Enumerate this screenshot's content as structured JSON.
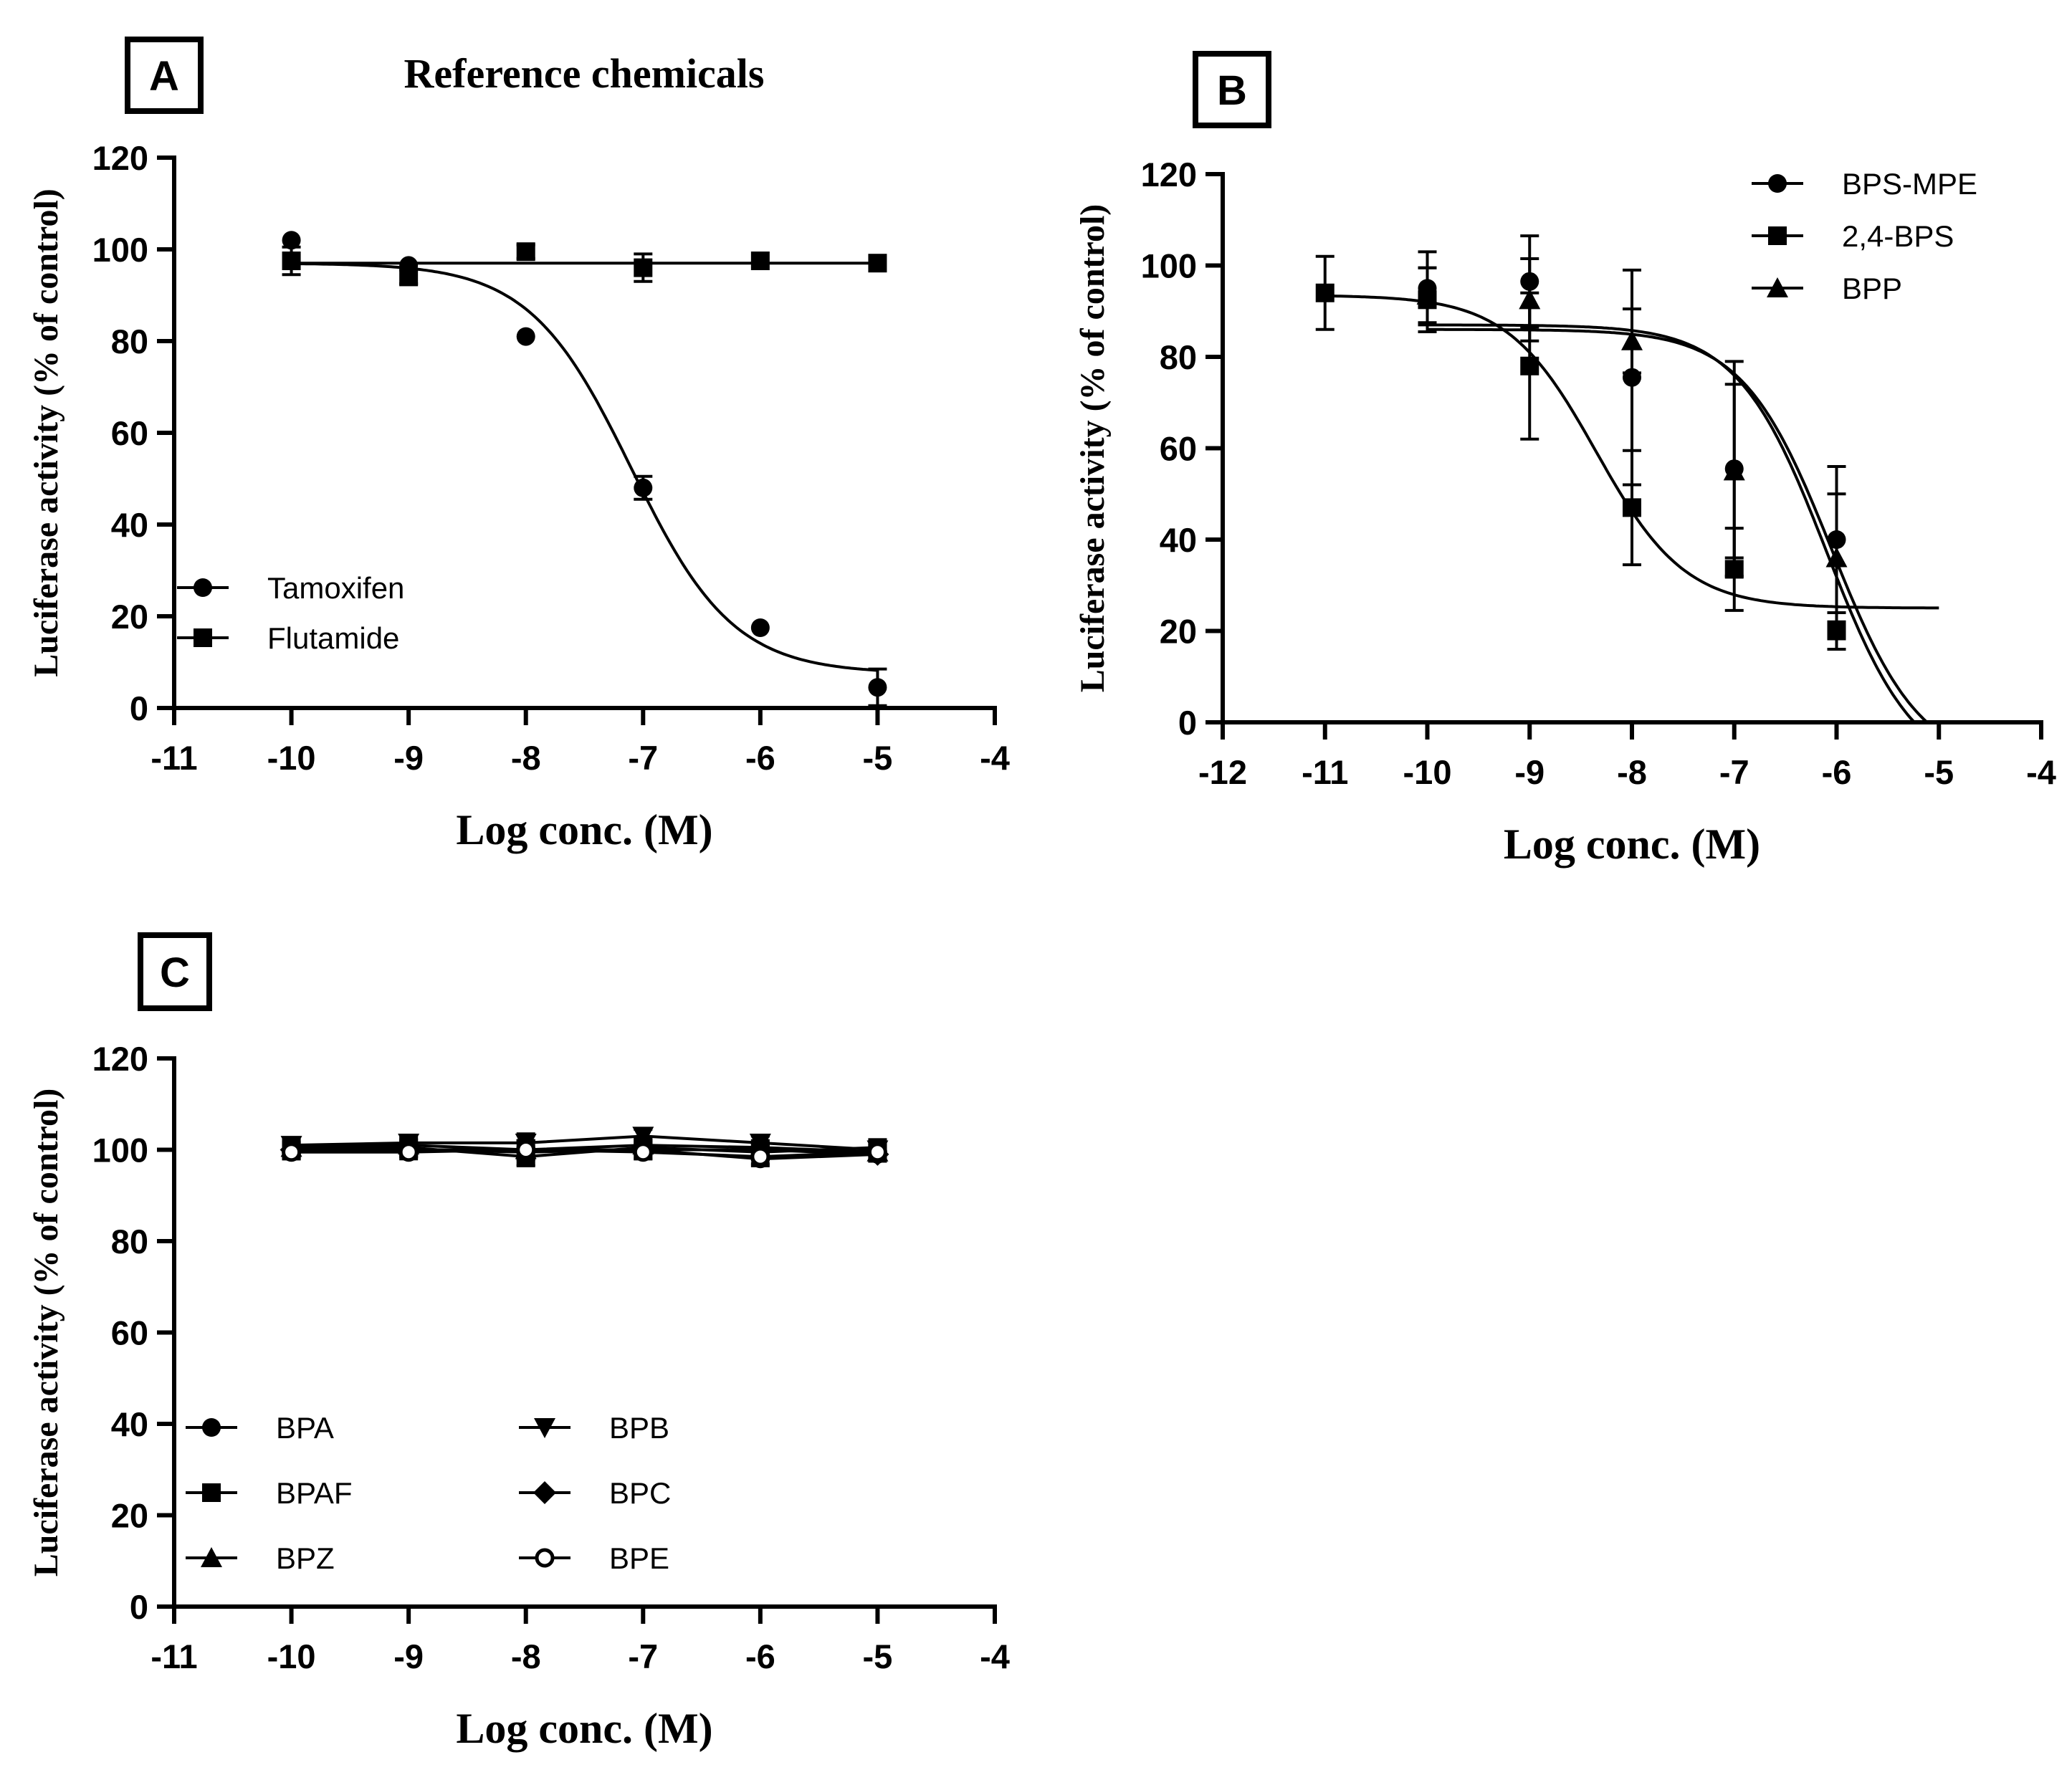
{
  "chart_data": [
    {
      "panel": "A",
      "type": "scatter",
      "title": "Reference chemicals",
      "xlabel": "Log conc. (M)",
      "ylabel": "Luciferase activity (% of control)",
      "xlim": [
        -11,
        -4
      ],
      "ylim": [
        0,
        120
      ],
      "x_ticks": [
        -11,
        -10,
        -9,
        -8,
        -7,
        -6,
        -5,
        -4
      ],
      "y_ticks": [
        0,
        20,
        40,
        60,
        80,
        100,
        120
      ],
      "legend_position": "bottom-left",
      "series": [
        {
          "name": "Tamoxifen",
          "marker": "circle",
          "x": [
            -10,
            -9,
            -8,
            -7,
            -6,
            -5
          ],
          "values": [
            102,
            96.5,
            81,
            48,
            17.5,
            4.5
          ],
          "errors": [
            0,
            0,
            0,
            2.5,
            0,
            4
          ],
          "fit": {
            "top": 97,
            "bottom": 7.5,
            "logIC50": -7.1,
            "hill": 1.0
          }
        },
        {
          "name": "Flutamide",
          "marker": "square",
          "x": [
            -10,
            -9,
            -8,
            -7,
            -6,
            -5
          ],
          "values": [
            97.5,
            94,
            99.5,
            96,
            97.5,
            97
          ],
          "errors": [
            3,
            1.5,
            1.5,
            3,
            0,
            0
          ],
          "fit": {
            "top": 97,
            "bottom": 97,
            "logIC50": -7,
            "hill": 1.0
          }
        }
      ]
    },
    {
      "panel": "B",
      "type": "scatter",
      "title": "",
      "xlabel": "Log conc. (M)",
      "ylabel": "Luciferase activity (% of control)",
      "xlim": [
        -12,
        -4
      ],
      "ylim": [
        0,
        120
      ],
      "x_ticks": [
        -12,
        -11,
        -10,
        -9,
        -8,
        -7,
        -6,
        -5,
        -4
      ],
      "y_ticks": [
        0,
        20,
        40,
        60,
        80,
        100,
        120
      ],
      "legend_position": "top-right",
      "series": [
        {
          "name": "BPS-MPE",
          "marker": "circle",
          "x": [
            -10,
            -9,
            -8,
            -7,
            -6
          ],
          "values": [
            95,
            96.5,
            75.5,
            55.5,
            40
          ],
          "errors": [
            8,
            10,
            23.5,
            23.5,
            16
          ],
          "fit": {
            "top": 86,
            "bottom": -10,
            "logIC50": -6.05,
            "hill": 1.0
          }
        },
        {
          "name": "2,4-BPS",
          "marker": "square",
          "x": [
            -11,
            -10,
            -9,
            -8,
            -7,
            -6
          ],
          "values": [
            94,
            92.5,
            78,
            47,
            33.5,
            20
          ],
          "errors": [
            8,
            7,
            16,
            12.5,
            9,
            4
          ],
          "fit": {
            "top": 93.5,
            "bottom": 25,
            "logIC50": -8.35,
            "hill": 1.0
          }
        },
        {
          "name": "BPP",
          "marker": "triangle",
          "x": [
            -10,
            -9,
            -8,
            -7,
            -6
          ],
          "values": [
            93.5,
            92.5,
            83.5,
            55,
            36
          ],
          "errors": [
            6,
            9,
            7,
            19,
            14
          ],
          "fit": {
            "top": 87,
            "bottom": -12,
            "logIC50": -6.1,
            "hill": 1.0
          }
        }
      ]
    },
    {
      "panel": "C",
      "type": "scatter",
      "title": "",
      "xlabel": "Log conc. (M)",
      "ylabel": "Luciferase activity (% of control)",
      "xlim": [
        -11,
        -4
      ],
      "ylim": [
        0,
        120
      ],
      "x_ticks": [
        -11,
        -10,
        -9,
        -8,
        -7,
        -6,
        -5,
        -4
      ],
      "y_ticks": [
        0,
        20,
        40,
        60,
        80,
        100,
        120
      ],
      "legend_position": "bottom-left",
      "series": [
        {
          "name": "BPA",
          "marker": "circle",
          "x": [
            -10,
            -9,
            -8,
            -7,
            -6,
            -5
          ],
          "values": [
            99.5,
            100,
            99.5,
            100,
            98,
            99
          ],
          "errors": [
            1.5,
            1.5,
            1.5,
            2,
            1.5,
            1.5
          ]
        },
        {
          "name": "BPAF",
          "marker": "square",
          "x": [
            -10,
            -9,
            -8,
            -7,
            -6,
            -5
          ],
          "values": [
            100,
            100.5,
            98.5,
            100.5,
            99.5,
            100.5
          ],
          "errors": [
            1.5,
            1.5,
            2,
            1.5,
            1.5,
            1.5
          ]
        },
        {
          "name": "BPZ",
          "marker": "triangle",
          "x": [
            -10,
            -9,
            -8,
            -7,
            -6,
            -5
          ],
          "values": [
            100.5,
            101,
            100,
            101,
            100.5,
            99.5
          ],
          "errors": [
            1.5,
            1.5,
            2,
            1.5,
            1.5,
            1.5
          ]
        },
        {
          "name": "BPB",
          "marker": "triangle-down",
          "x": [
            -10,
            -9,
            -8,
            -7,
            -6,
            -5
          ],
          "values": [
            101,
            101.5,
            101.5,
            103,
            101.5,
            100
          ],
          "errors": [
            1.5,
            1.5,
            2,
            1.5,
            1.5,
            1.5
          ]
        },
        {
          "name": "BPC",
          "marker": "diamond",
          "x": [
            -10,
            -9,
            -8,
            -7,
            -6,
            -5
          ],
          "values": [
            100,
            100,
            100,
            100,
            100,
            99
          ],
          "errors": [
            1.5,
            1.5,
            2,
            1.5,
            1.5,
            1.5
          ]
        },
        {
          "name": "BPE",
          "marker": "circle-open",
          "x": [
            -10,
            -9,
            -8,
            -7,
            -6,
            -5
          ],
          "values": [
            99.5,
            99.5,
            100,
            99.5,
            98.5,
            99.5
          ],
          "errors": [
            1.5,
            1.5,
            2,
            1.5,
            1.5,
            1.5
          ]
        }
      ]
    }
  ]
}
